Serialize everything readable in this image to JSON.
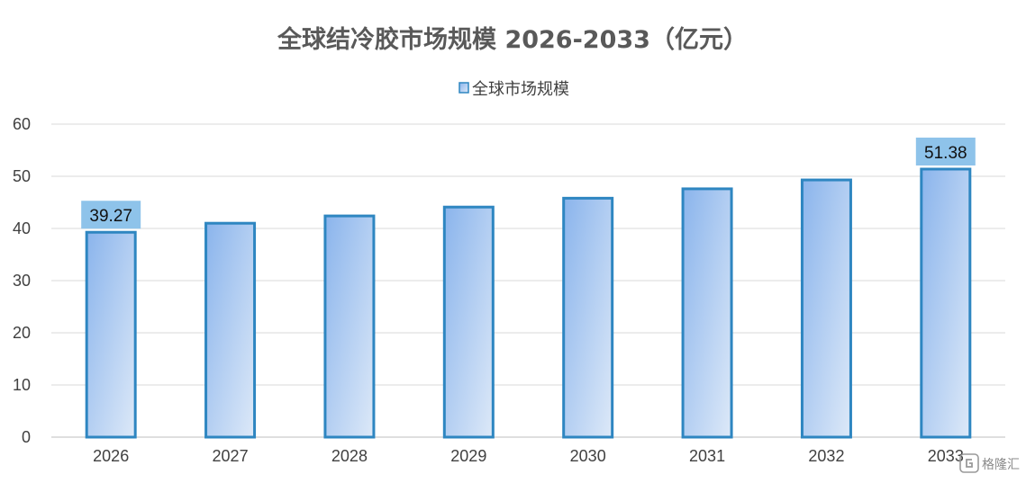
{
  "chart_data": {
    "type": "bar",
    "title": "全球结冷胶市场规模 2026-2033（亿元）",
    "categories": [
      "2026",
      "2027",
      "2028",
      "2029",
      "2030",
      "2031",
      "2032",
      "2033"
    ],
    "series": [
      {
        "name": "全球市场规模",
        "values": [
          39.27,
          41.0,
          42.4,
          44.1,
          45.8,
          47.6,
          49.3,
          51.38
        ]
      }
    ],
    "data_labels": [
      {
        "category": "2026",
        "text": "39.27"
      },
      {
        "category": "2033",
        "text": "51.38"
      }
    ],
    "ylim": [
      0,
      60
    ],
    "yticks": [
      0,
      10,
      20,
      30,
      40,
      50,
      60
    ],
    "xlabel": "",
    "ylabel": "",
    "grid": true,
    "legend_position": "top-center",
    "colors": {
      "bar_fill_start": "#8ab4ec",
      "bar_fill_end": "#dde9f8",
      "bar_stroke": "#2e86c1",
      "label_box": "#8ec3ea",
      "grid": "#d9d9d9"
    }
  },
  "watermark": {
    "icon": "gelonghui-logo-icon",
    "text": "格隆汇"
  }
}
